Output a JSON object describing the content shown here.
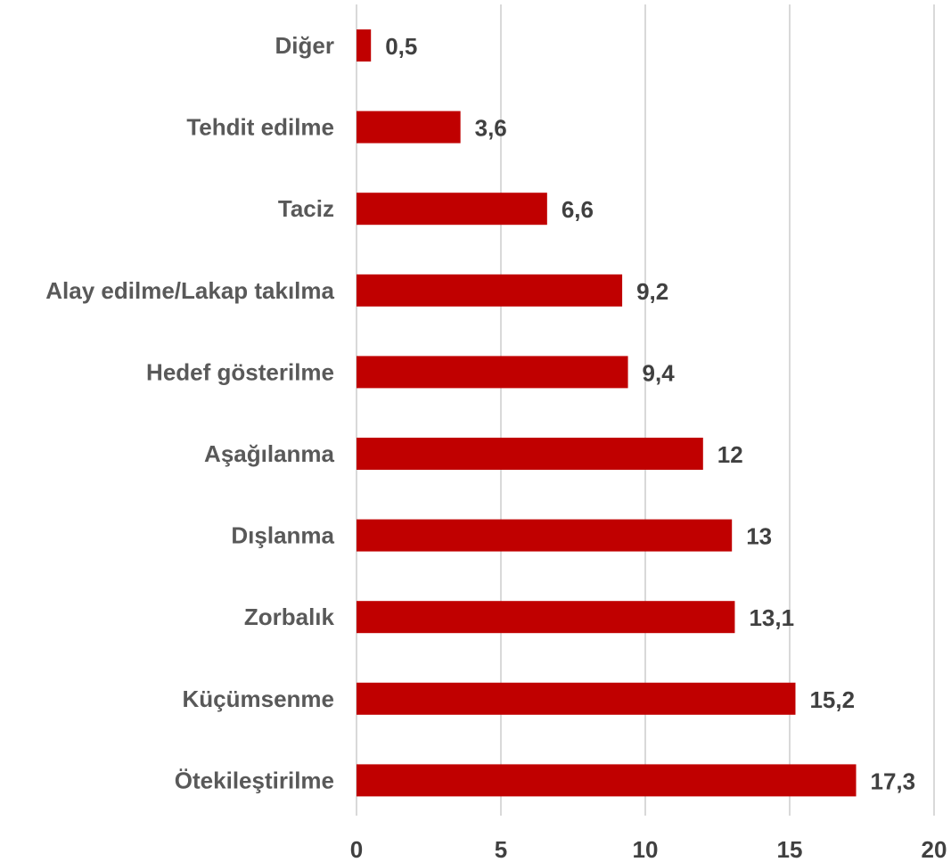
{
  "chart_data": {
    "type": "bar",
    "orientation": "horizontal",
    "categories": [
      "Diğer",
      "Tehdit edilme",
      "Taciz",
      "Alay edilme/Lakap takılma",
      "Hedef gösterilme",
      "Aşağılanma",
      "Dışlanma",
      "Zorbalık",
      "Küçümsenme",
      "Ötekileştirilme"
    ],
    "values": [
      0.5,
      3.6,
      6.6,
      9.2,
      9.4,
      12,
      13,
      13.1,
      15.2,
      17.3
    ],
    "value_labels": [
      "0,5",
      "3,6",
      "6,6",
      "9,2",
      "9,4",
      "12",
      "13",
      "13,1",
      "15,2",
      "17,3"
    ],
    "xlim": [
      0,
      20
    ],
    "x_ticks": [
      0,
      5,
      10,
      15,
      20
    ],
    "x_tick_labels": [
      "0",
      "5",
      "10",
      "15",
      "20"
    ],
    "grid": "vertical",
    "legend": "none",
    "bar_color": "#c00000",
    "grid_color": "#d9d9d9",
    "label_color": "#595959",
    "value_color": "#404040"
  }
}
